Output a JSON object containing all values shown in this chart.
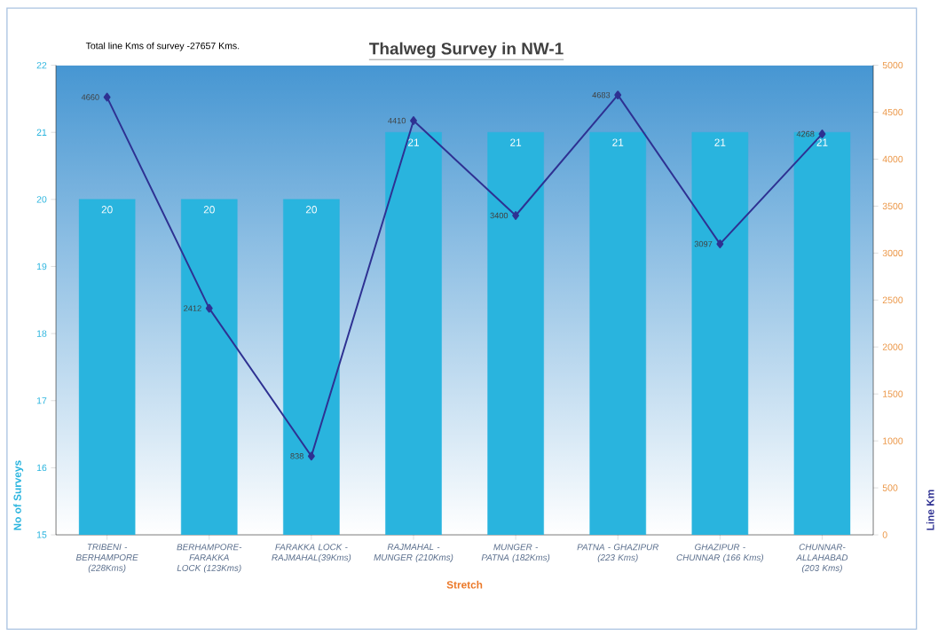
{
  "chart_data": {
    "type": "bar",
    "title": "Thalweg Survey in NW-1",
    "xlabel": "Stretch",
    "ylabel": "No of Surveys",
    "y2label": "Line Km",
    "annotations": [
      "Total line Kms of survey -27657 Kms."
    ],
    "categories": [
      "TRIBENI - BERHAMPORE (228Kms)",
      "BERHAMPORE-FARAKKA LOCK (123Kms)",
      "FARAKKA LOCK - RAJMAHAL(39Kms)",
      "RAJMAHAL - MUNGER (210Kms)",
      "MUNGER - PATNA (182Kms)",
      "PATNA - GHAZIPUR (223 Kms)",
      "GHAZIPUR - CHUNNAR (166 Kms)",
      "CHUNNAR- ALLAHABAD (203 Kms)"
    ],
    "series": [
      {
        "color": "#29b4de",
        "values": [
          20,
          20,
          20,
          21,
          21,
          21,
          21,
          21
        ]
      },
      {
        "type": "line",
        "axis": "y2",
        "color": "#2e3192",
        "marker": "diamond",
        "values": [
          4660,
          2412,
          838,
          4410,
          3400,
          4683,
          3097,
          4268
        ]
      }
    ],
    "ylim": [
      15,
      22
    ],
    "yticks": [
      15,
      16,
      17,
      18,
      19,
      20,
      21,
      22
    ],
    "y2lim": [
      0,
      5000
    ],
    "y2ticks": [
      0,
      500,
      1000,
      1500,
      2000,
      2500,
      3000,
      3500,
      4000,
      4500,
      5000
    ],
    "data_labels": true,
    "grid": false
  }
}
